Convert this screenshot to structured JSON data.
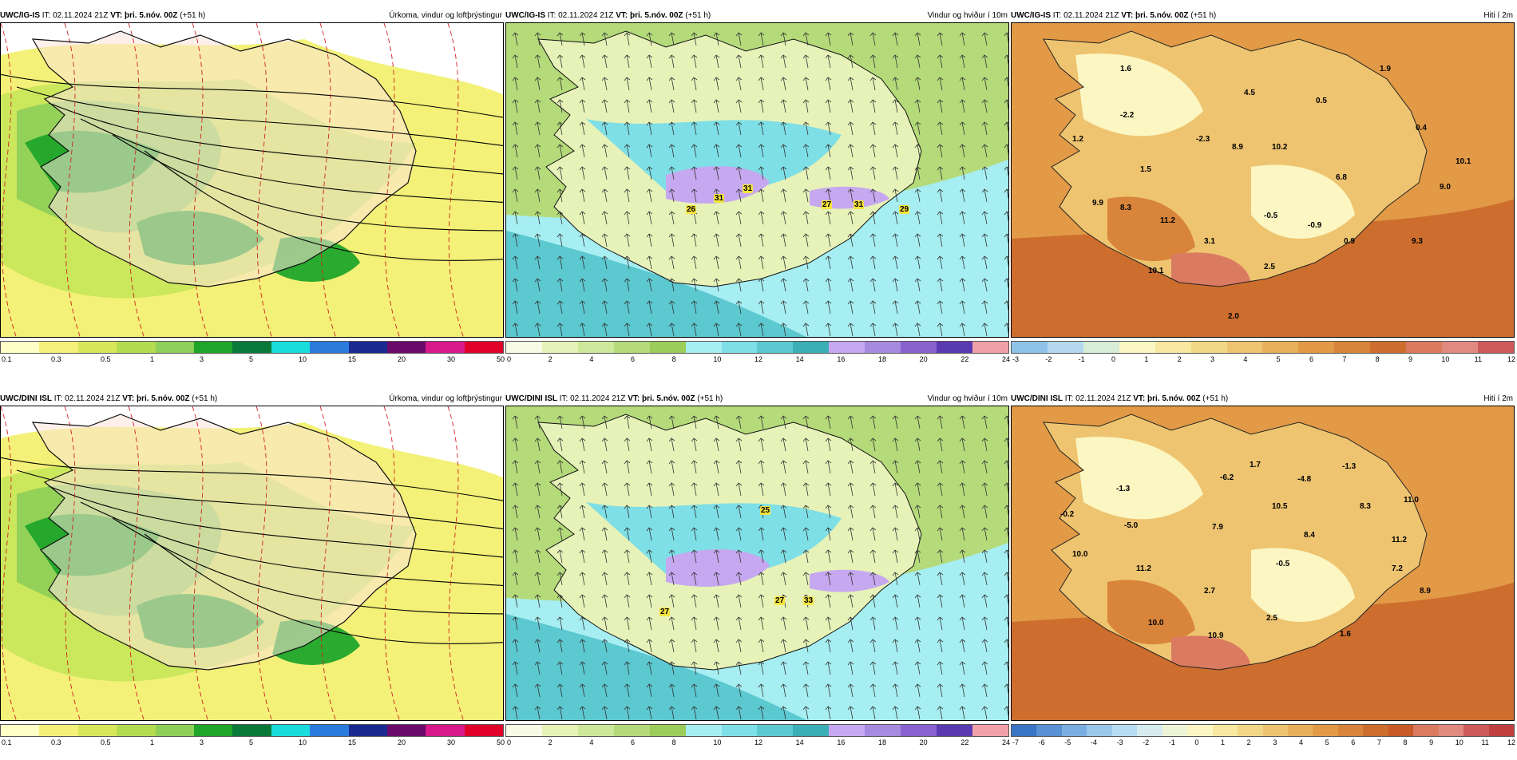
{
  "panels": [
    {
      "id": "p1",
      "model": "UWC/IG-IS",
      "it_label": "IT:",
      "it": "02.11.2024 21Z",
      "vt_label": "VT:",
      "vt": "þri. 5.nóv. 00Z",
      "lead": "(+51 h)",
      "title": "Úrkoma, vindur og loftþrýstingur",
      "theme": "precip",
      "colorbar": [
        "#ffffc8",
        "#f5f07a",
        "#d8e65a",
        "#b4dc50",
        "#8fd05a",
        "#1fa52a",
        "#0a7a3a",
        "#1bdcdc",
        "#2a7bdc",
        "#1a2a90",
        "#6a0a6a",
        "#d61a8a",
        "#e0002a"
      ],
      "ticks": [
        "0.1",
        "0.3",
        "0.5",
        "1",
        "3",
        "5",
        "10",
        "15",
        "20",
        "30",
        "50"
      ],
      "values": []
    },
    {
      "id": "p2",
      "model": "UWC/IG-IS",
      "it_label": "IT:",
      "it": "02.11.2024 21Z",
      "vt_label": "VT:",
      "vt": "þri. 5.nóv. 00Z",
      "lead": "(+51 h)",
      "title": "Vindur og hviður í 10m",
      "theme": "wind",
      "colorbar": [
        "#f8fbe6",
        "#e6f2b8",
        "#cde89a",
        "#b4da7a",
        "#9ccc5a",
        "#a6eef2",
        "#7edfe6",
        "#5cc8cf",
        "#3aafb5",
        "#c6a8f0",
        "#a68ae0",
        "#8a62d0",
        "#5a3ab0",
        "#f0a0a8"
      ],
      "ticks": [
        "0",
        "2",
        "4",
        "6",
        "8",
        "10",
        "12",
        "14",
        "16",
        "18",
        "20",
        "22",
        "24"
      ],
      "values": [
        "26",
        "31",
        "31",
        "27",
        "31",
        "29"
      ]
    },
    {
      "id": "p3",
      "model": "UWC/IG-IS",
      "it_label": "IT:",
      "it": "02.11.2024 21Z",
      "vt_label": "VT:",
      "vt": "þri. 5.nóv. 00Z",
      "lead": "(+51 h)",
      "title": "Hiti í 2m",
      "theme": "temp",
      "colorbar": [
        "#8fc2e8",
        "#b3d8f0",
        "#d8ecd8",
        "#fbf6c2",
        "#f8e8a0",
        "#f2d886",
        "#eec470",
        "#e8b05a",
        "#e29a46",
        "#d8843a",
        "#cd6e2e",
        "#da7a60",
        "#e08a80",
        "#cc5a5a"
      ],
      "ticks": [
        "-3",
        "-2",
        "-1",
        "0",
        "1",
        "2",
        "3",
        "4",
        "5",
        "6",
        "7",
        "8",
        "9",
        "10",
        "11",
        "12"
      ],
      "values": [
        "1.6",
        "1.9",
        "4.5",
        "0.5",
        "-2.2",
        "1.2",
        "-2.3",
        "8.9",
        "10.2",
        "0.4",
        "10.1",
        "1.5",
        "6.8",
        "9.0",
        "9.9",
        "8.3",
        "11.2",
        "-0.5",
        "-0.9",
        "0.9",
        "9.3",
        "3.1",
        "2.5",
        "10.1",
        "2.0"
      ]
    },
    {
      "id": "p4",
      "model": "UWC/DINI ISL",
      "it_label": "IT:",
      "it": "02.11.2024 21Z",
      "vt_label": "VT:",
      "vt": "þri. 5.nóv. 00Z",
      "lead": "(+51 h)",
      "title": "Úrkoma, vindur og loftþrýstingur",
      "theme": "precip",
      "colorbar": [
        "#ffffc8",
        "#f5f07a",
        "#d8e65a",
        "#b4dc50",
        "#8fd05a",
        "#1fa52a",
        "#0a7a3a",
        "#1bdcdc",
        "#2a7bdc",
        "#1a2a90",
        "#6a0a6a",
        "#d61a8a",
        "#e0002a"
      ],
      "ticks": [
        "0.1",
        "0.3",
        "0.5",
        "1",
        "3",
        "5",
        "10",
        "15",
        "20",
        "30",
        "50"
      ],
      "values": []
    },
    {
      "id": "p5",
      "model": "UWC/DINI ISL",
      "it_label": "IT:",
      "it": "02.11.2024 21Z",
      "vt_label": "VT:",
      "vt": "þri. 5.nóv. 00Z",
      "lead": "(+51 h)",
      "title": "Vindur og hviður í 10m",
      "theme": "wind",
      "colorbar": [
        "#f8fbe6",
        "#e6f2b8",
        "#cde89a",
        "#b4da7a",
        "#9ccc5a",
        "#a6eef2",
        "#7edfe6",
        "#5cc8cf",
        "#3aafb5",
        "#c6a8f0",
        "#a68ae0",
        "#8a62d0",
        "#5a3ab0",
        "#f0a0a8"
      ],
      "ticks": [
        "0",
        "2",
        "4",
        "6",
        "8",
        "10",
        "12",
        "14",
        "16",
        "18",
        "20",
        "22",
        "24"
      ],
      "values": [
        "25",
        "27",
        "27",
        "33"
      ]
    },
    {
      "id": "p6",
      "model": "UWC/DINI ISL",
      "it_label": "IT:",
      "it": "02.11.2024 21Z",
      "vt_label": "VT:",
      "vt": "þri. 5.nóv. 00Z",
      "lead": "(+51 h)",
      "title": "Hiti í 2m",
      "theme": "temp",
      "colorbar": [
        "#3a74c4",
        "#5a90d4",
        "#7aaee0",
        "#9ac8ea",
        "#b8dcf2",
        "#d6ecf0",
        "#eef4d8",
        "#fbf6c2",
        "#f8e8a0",
        "#f2d886",
        "#eec470",
        "#e8b05a",
        "#e29a46",
        "#d8843a",
        "#cd6e2e",
        "#c85a28",
        "#da7a60",
        "#e08a80",
        "#cc5a5a",
        "#c04040"
      ],
      "ticks": [
        "-7",
        "-6",
        "-5",
        "-4",
        "-3",
        "-2",
        "-1",
        "0",
        "1",
        "2",
        "3",
        "4",
        "5",
        "6",
        "7",
        "8",
        "9",
        "10",
        "11",
        "12"
      ],
      "values": [
        "1.7",
        "-1.3",
        "-6.2",
        "-4.8",
        "-1.3",
        "-0.2",
        "10.5",
        "8.3",
        "11.0",
        "-5.0",
        "7.9",
        "8.4",
        "11.2",
        "10.0",
        "11.2",
        "-0.5",
        "7.2",
        "2.7",
        "8.9",
        "2.5",
        "10.0",
        "1.6",
        "10.9"
      ]
    }
  ]
}
